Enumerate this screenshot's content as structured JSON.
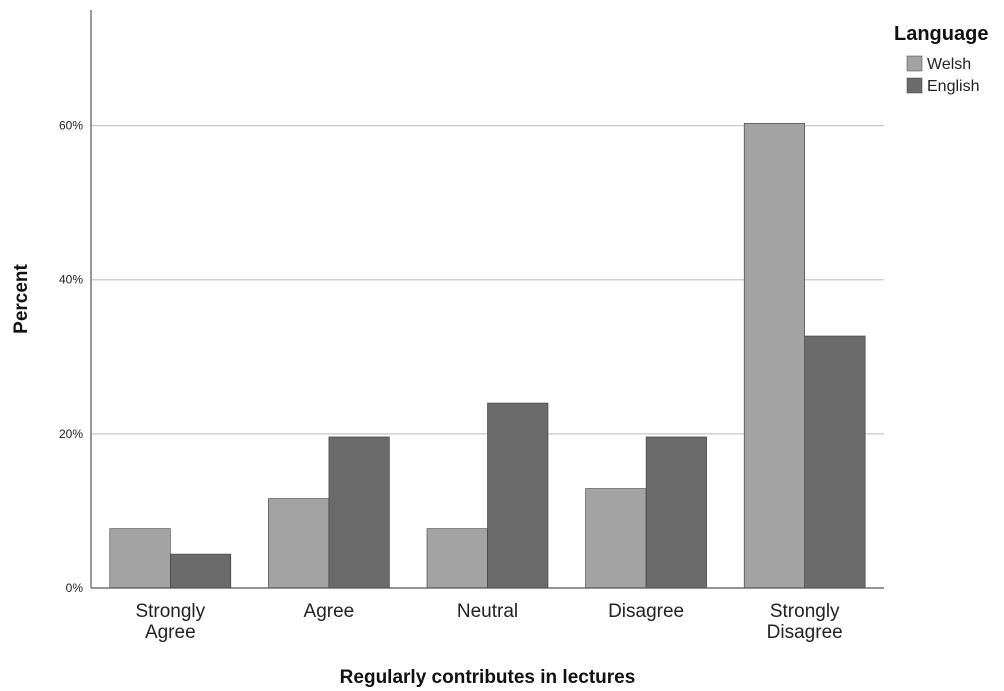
{
  "chart_data": {
    "type": "bar",
    "categories": [
      [
        "Strongly",
        "Agree"
      ],
      [
        "Agree"
      ],
      [
        "Neutral"
      ],
      [
        "Disagree"
      ],
      [
        "Strongly",
        "Disagree"
      ]
    ],
    "series": [
      {
        "name": "Welsh",
        "color": "#a3a3a3",
        "values": [
          7.7,
          11.6,
          7.7,
          12.9,
          60.3
        ]
      },
      {
        "name": "English",
        "color": "#6b6b6b",
        "values": [
          4.4,
          19.6,
          24.0,
          19.6,
          32.7
        ]
      }
    ],
    "xlabel": "Regularly contributes in lectures",
    "ylabel": "Percent",
    "ylim": [
      0,
      75
    ],
    "yticks": [
      0,
      20,
      40,
      60
    ],
    "ytick_labels": [
      "0%",
      "20%",
      "40%",
      "60%"
    ],
    "grid": true,
    "legend": {
      "title": "Language",
      "position": "top-right"
    }
  }
}
